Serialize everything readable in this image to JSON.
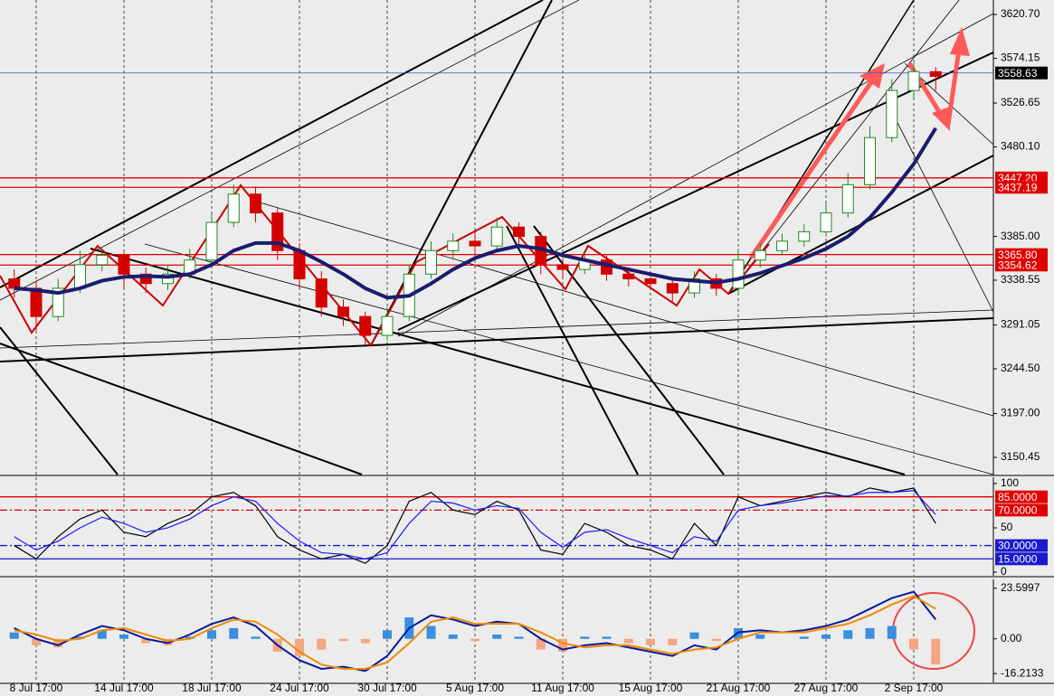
{
  "chart_data": [
    {
      "type": "candlestick",
      "categories": [
        null,
        "8 Jul 17:00",
        null,
        null,
        null,
        "14 Jul 17:00",
        null,
        null,
        null,
        "18 Jul 17:00",
        null,
        null,
        null,
        "24 Jul 17:00",
        null,
        null,
        null,
        "30 Jul 17:00",
        null,
        null,
        null,
        "5 Aug 17:00",
        null,
        null,
        null,
        "11 Aug 17:00",
        null,
        null,
        null,
        "15 Aug 17:00",
        null,
        null,
        null,
        "21 Aug 17:00",
        null,
        null,
        null,
        "27 Aug 17:00",
        null,
        null,
        null,
        "2 Sep 17:00",
        null
      ],
      "open": [
        3340,
        3330,
        3300,
        3330,
        3355,
        3365,
        3345,
        3335,
        3345,
        3360,
        3400,
        3430,
        3410,
        3370,
        3340,
        3310,
        3300,
        3280,
        3300,
        3345,
        3370,
        3380,
        3375,
        3395,
        3385,
        3355,
        3350,
        3360,
        3345,
        3340,
        3335,
        3325,
        3340,
        3330,
        3360,
        3370,
        3380,
        3390,
        3410,
        3440,
        3490,
        3540,
        3560
      ],
      "high": [
        3350,
        3338,
        3340,
        3370,
        3372,
        3368,
        3352,
        3355,
        3372,
        3410,
        3440,
        3438,
        3415,
        3378,
        3348,
        3318,
        3305,
        3310,
        3355,
        3380,
        3388,
        3390,
        3405,
        3400,
        3390,
        3362,
        3368,
        3365,
        3350,
        3346,
        3340,
        3348,
        3345,
        3372,
        3378,
        3388,
        3398,
        3420,
        3452,
        3502,
        3552,
        3572,
        3565
      ],
      "low": [
        3320,
        3285,
        3295,
        3325,
        3348,
        3330,
        3325,
        3328,
        3340,
        3355,
        3395,
        3400,
        3360,
        3330,
        3300,
        3290,
        3270,
        3275,
        3295,
        3340,
        3362,
        3365,
        3370,
        3375,
        3345,
        3340,
        3345,
        3338,
        3332,
        3328,
        3315,
        3320,
        3322,
        3325,
        3352,
        3365,
        3374,
        3385,
        3405,
        3435,
        3485,
        3532,
        3540
      ],
      "close": [
        3330,
        3300,
        3330,
        3355,
        3365,
        3345,
        3335,
        3345,
        3360,
        3400,
        3430,
        3410,
        3370,
        3340,
        3310,
        3300,
        3280,
        3300,
        3345,
        3370,
        3380,
        3375,
        3395,
        3385,
        3355,
        3350,
        3360,
        3345,
        3340,
        3335,
        3325,
        3340,
        3330,
        3360,
        3370,
        3380,
        3390,
        3410,
        3440,
        3490,
        3540,
        3560,
        3555
      ],
      "up_color": "#1f8a1f",
      "down_color": "#d40000",
      "overlays": [
        {
          "color": "#1c1c6e",
          "values": [
            3330,
            3328,
            3325,
            3330,
            3338,
            3342,
            3343,
            3342,
            3345,
            3355,
            3370,
            3378,
            3378,
            3370,
            3358,
            3345,
            3330,
            3320,
            3322,
            3335,
            3350,
            3362,
            3370,
            3375,
            3372,
            3365,
            3360,
            3355,
            3350,
            3345,
            3340,
            3338,
            3336,
            3340,
            3346,
            3354,
            3362,
            3372,
            3385,
            3405,
            3432,
            3462,
            3500
          ]
        }
      ],
      "ylim": [
        3132.2,
        3636.1
      ],
      "yticks": [
        {
          "value": 3620.7,
          "label": "3620.70"
        },
        3574.15,
        3526.65,
        {
          "value": 3480.1,
          "label": "3480.10"
        },
        {
          "value": 3385,
          "label": "3385.00"
        },
        3338.55,
        3291.05,
        {
          "value": 3244.5,
          "label": "3244.50"
        },
        {
          "value": 3197,
          "label": "3197.00"
        },
        3150.45
      ],
      "levels": [
        {
          "value": 3558.63,
          "color": "#000000",
          "line_color": "#3355cc"
        },
        {
          "value": 3447.2,
          "label": "3447.20",
          "color": "#e00000"
        },
        {
          "value": 3437.19,
          "color": "#e00000"
        },
        {
          "value": 3365.8,
          "label": "3365.80",
          "color": "#e00000"
        },
        {
          "value": 3354.62,
          "color": "#e00000"
        }
      ]
    },
    {
      "type": "line",
      "series": [
        {
          "color": "#000000",
          "values": [
            30,
            15,
            40,
            60,
            70,
            45,
            40,
            55,
            65,
            85,
            90,
            75,
            40,
            25,
            15,
            20,
            10,
            30,
            80,
            90,
            70,
            65,
            80,
            70,
            25,
            20,
            55,
            45,
            30,
            25,
            15,
            55,
            30,
            85,
            75,
            80,
            85,
            90,
            85,
            95,
            90,
            95,
            55
          ]
        },
        {
          "color": "#1a1aff",
          "values": [
            40,
            25,
            35,
            50,
            62,
            55,
            45,
            50,
            60,
            75,
            85,
            80,
            55,
            35,
            22,
            20,
            15,
            22,
            55,
            80,
            78,
            70,
            75,
            72,
            45,
            28,
            45,
            48,
            38,
            30,
            22,
            40,
            35,
            70,
            75,
            78,
            82,
            86,
            86,
            90,
            90,
            92,
            65
          ]
        }
      ],
      "ylim": [
        -4.1,
        107.1
      ],
      "yticks": [
        100,
        50,
        0
      ],
      "levels": [
        {
          "value": 85,
          "label": "85.0000",
          "color": "#e00000",
          "dash": "none"
        },
        {
          "value": 70,
          "label": "70.0000",
          "color": "#e00000",
          "dash": "8 3 2 3"
        },
        {
          "value": 30,
          "label": "30.0000",
          "color": "#1a1acc",
          "dash": "8 3 2 3"
        },
        {
          "value": 15,
          "label": "15.0000",
          "color": "#1a1acc",
          "dash": "none"
        }
      ]
    },
    {
      "type": "macd",
      "histogram": {
        "pos_color": "#3a8ee0",
        "neg_color": "#f4a582",
        "values": [
          3,
          -3,
          -4,
          1,
          4,
          2,
          -2,
          -3,
          1,
          4,
          5,
          1,
          -6,
          -8,
          -5,
          -1,
          -2,
          4,
          10,
          6,
          2,
          -1,
          2,
          1,
          -5,
          -6,
          1,
          1,
          -2,
          -3,
          -3,
          3,
          -1,
          5,
          2,
          0,
          1,
          2,
          4,
          5,
          6,
          -5,
          -12
        ]
      },
      "series": [
        {
          "color": "#0a1a9a",
          "values": [
            5,
            0,
            -3,
            2,
            6,
            4,
            0,
            -2,
            2,
            7,
            10,
            6,
            -3,
            -10,
            -14,
            -13,
            -15,
            -8,
            5,
            11,
            9,
            6,
            8,
            7,
            0,
            -5,
            -3,
            -2,
            -4,
            -6,
            -8,
            -3,
            -5,
            3,
            4,
            3,
            4,
            6,
            9,
            14,
            19,
            22,
            9
          ]
        },
        {
          "color": "#f08a00",
          "values": [
            4,
            2,
            -1,
            0,
            4,
            5,
            2,
            -1,
            0,
            5,
            9,
            8,
            2,
            -6,
            -12,
            -14,
            -14,
            -11,
            -2,
            8,
            10,
            7,
            7,
            7,
            3,
            -2,
            -4,
            -3,
            -3,
            -5,
            -7,
            -5,
            -4,
            0,
            3,
            3,
            3,
            5,
            7,
            11,
            16,
            20,
            14
          ]
        }
      ],
      "ylim": [
        -20.35,
        27.74
      ],
      "yticks": [
        23.5997,
        {
          "value": 0,
          "label": "0.00"
        },
        -16.2133
      ]
    }
  ]
}
